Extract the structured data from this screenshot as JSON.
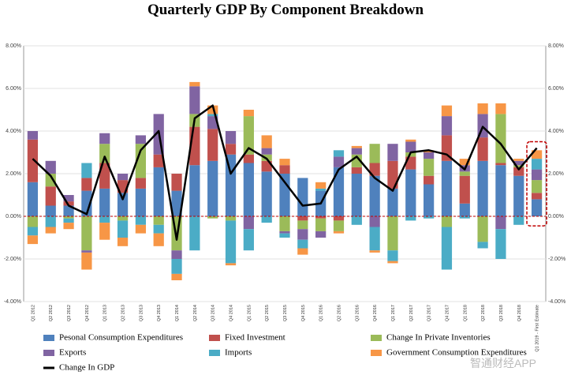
{
  "chart_data": {
    "type": "bar",
    "title": "Quarterly GDP By Component Breakdown",
    "watermark": "智通财经APP",
    "categories": [
      "Q1 2012",
      "Q2 2012",
      "Q3 2012",
      "Q4 2012",
      "Q1 2013",
      "Q2 2013",
      "Q3 2013",
      "Q4 2013",
      "Q1 2014",
      "Q2 2014",
      "Q3 2014",
      "Q4 2014",
      "Q1 2015",
      "Q2 2015",
      "Q3 2015",
      "Q4 2015",
      "Q1 2016",
      "Q2 2016",
      "Q3 2016",
      "Q4 2016",
      "Q1 2017",
      "Q2 2017",
      "Q3 2017",
      "Q4 2017",
      "Q1 2018",
      "Q2 2018",
      "Q3 2018",
      "Q4 2018",
      "Q1 2019 - First Estimate"
    ],
    "series": [
      {
        "name": "Pesonal Consumption Expenditures",
        "color": "#4f81bd",
        "values": [
          1.6,
          0.5,
          0.5,
          1.2,
          1.3,
          1.1,
          1.3,
          2.3,
          1.2,
          2.4,
          2.6,
          2.9,
          2.5,
          2.1,
          2.0,
          1.8,
          1.2,
          2.3,
          2.0,
          1.9,
          1.3,
          2.2,
          1.5,
          2.6,
          0.6,
          2.6,
          2.4,
          1.9,
          0.8
        ]
      },
      {
        "name": "Fixed Investment",
        "color": "#c0504d",
        "values": [
          2.0,
          0.9,
          0.2,
          0.6,
          1.2,
          0.6,
          0.5,
          0.6,
          0.8,
          1.8,
          1.5,
          0.5,
          0.4,
          0.5,
          0.4,
          -0.2,
          -0.1,
          -0.2,
          0.3,
          0.6,
          1.3,
          0.6,
          0.4,
          1.2,
          1.3,
          1.1,
          0.1,
          0.4,
          0.3
        ]
      },
      {
        "name": "Change In Private Inventories",
        "color": "#9bbb59",
        "values": [
          -0.5,
          0.6,
          -0.1,
          -1.6,
          0.9,
          -0.2,
          1.6,
          -0.4,
          -1.6,
          0.6,
          -0.1,
          -0.2,
          1.8,
          0.3,
          -0.7,
          -0.4,
          -0.6,
          -0.5,
          0.6,
          0.9,
          -1.6,
          0.2,
          0.8,
          -0.5,
          0.2,
          -1.2,
          2.3,
          0.1,
          0.6
        ]
      },
      {
        "name": "Exports",
        "color": "#8064a2",
        "values": [
          0.4,
          0.6,
          0.3,
          -0.1,
          0.5,
          0.3,
          0.4,
          1.9,
          -0.4,
          1.3,
          0.6,
          0.6,
          -0.6,
          0.3,
          -0.1,
          -0.5,
          -0.3,
          0.5,
          0.3,
          -0.5,
          0.8,
          0.5,
          0.3,
          0.9,
          0.3,
          1.1,
          -0.6,
          0.2,
          0.5
        ]
      },
      {
        "name": "Imports",
        "color": "#4bacc6",
        "values": [
          -0.4,
          -0.5,
          -0.2,
          0.7,
          -0.3,
          -0.8,
          -0.4,
          -0.4,
          -0.7,
          -1.6,
          0.1,
          -2.0,
          -1.0,
          -0.3,
          -0.2,
          -0.4,
          0.1,
          0.3,
          -0.4,
          -1.1,
          -0.5,
          -0.2,
          -0.1,
          -2.0,
          -0.1,
          -0.3,
          -1.4,
          -0.4,
          0.5
        ]
      },
      {
        "name": "Government Consumption Expenditures",
        "color": "#f79646",
        "values": [
          -0.4,
          -0.3,
          -0.3,
          -0.8,
          -0.8,
          -0.4,
          -0.4,
          -0.6,
          -0.3,
          0.2,
          0.4,
          -0.1,
          0.3,
          0.6,
          0.3,
          -0.3,
          0.3,
          -0.1,
          0.1,
          -0.1,
          -0.1,
          0.1,
          0.1,
          0.5,
          0.3,
          0.5,
          0.5,
          0.1,
          0.4
        ]
      }
    ],
    "line": {
      "name": "Change In GDP",
      "color": "#000000",
      "values": [
        2.7,
        1.9,
        0.5,
        0.1,
        2.8,
        0.8,
        3.1,
        4.0,
        -1.1,
        4.6,
        5.2,
        2.0,
        3.2,
        2.7,
        1.6,
        0.5,
        0.6,
        2.2,
        2.8,
        1.8,
        1.2,
        3.0,
        3.1,
        2.9,
        2.2,
        4.2,
        3.4,
        2.2,
        3.2
      ]
    },
    "ylim": [
      -4,
      8
    ],
    "yticks": [
      {
        "value": -4,
        "label": "-4.00%"
      },
      {
        "value": -2,
        "label": "-2.00%"
      },
      {
        "value": 0,
        "label": "0.00%"
      },
      {
        "value": 2,
        "label": "2.00%"
      },
      {
        "value": 4,
        "label": "4.00%"
      },
      {
        "value": 6,
        "label": "6.00%"
      },
      {
        "value": 8,
        "label": "8.00%"
      }
    ],
    "grid": true
  }
}
